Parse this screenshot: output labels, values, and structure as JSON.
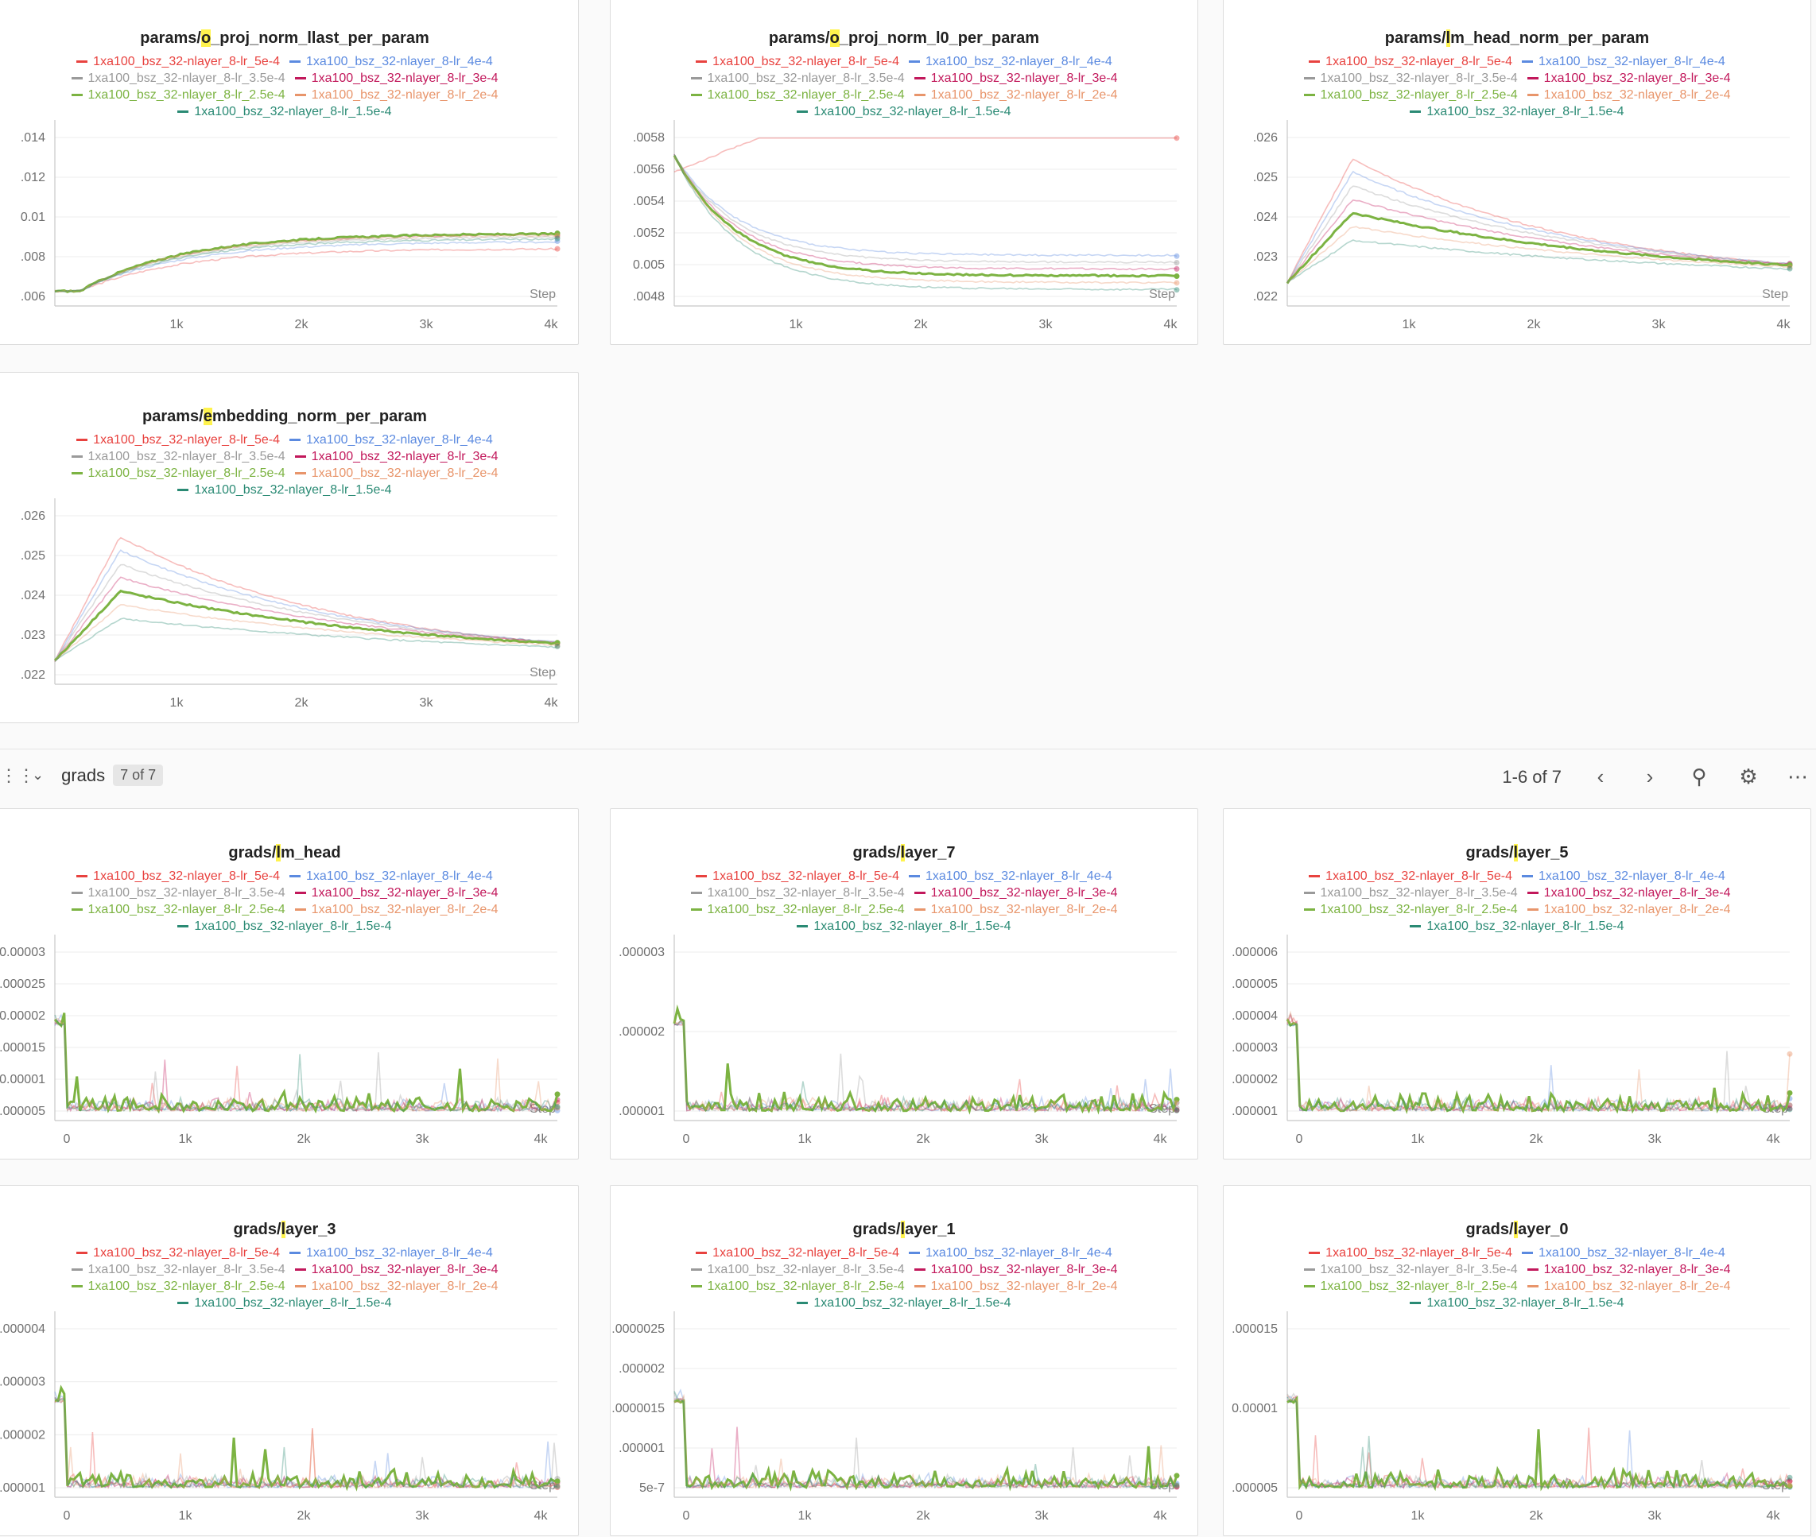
{
  "legend": {
    "runs": [
      {
        "name": "1xa100_bsz_32-nlayer_8-lr_5e-4",
        "color": "#e8423f"
      },
      {
        "name": "1xa100_bsz_32-nlayer_8-lr_4e-4",
        "color": "#5b8ae0"
      },
      {
        "name": "1xa100_bsz_32-nlayer_8-lr_3.5e-4",
        "color": "#9a9a9a"
      },
      {
        "name": "1xa100_bsz_32-nlayer_8-lr_3e-4",
        "color": "#c2185b"
      },
      {
        "name": "1xa100_bsz_32-nlayer_8-lr_2.5e-4",
        "color": "#7cb342"
      },
      {
        "name": "1xa100_bsz_32-nlayer_8-lr_2e-4",
        "color": "#e8956b"
      },
      {
        "name": "1xa100_bsz_32-nlayer_8-lr_1.5e-4",
        "color": "#2a8a74"
      }
    ]
  },
  "step_label": "Step",
  "params_panels": [
    {
      "prefix": "params/",
      "hl": "o",
      "rest": "_proj_norm_llast_per_param",
      "yticks": [
        ".006",
        ".008",
        "0.01",
        ".012",
        ".014"
      ],
      "xticks": [
        "1k",
        "2k",
        "3k",
        "4k"
      ]
    },
    {
      "prefix": "params/",
      "hl": "o",
      "rest": "_proj_norm_l0_per_param",
      "yticks": ".0048|0.005|.0052|.0054|.0056|.0058",
      "xticks": [
        "1k",
        "2k",
        "3k",
        "4k"
      ]
    },
    {
      "prefix": "params/",
      "hl": "l",
      "rest": "m_head_norm_per_param",
      "yticks": [
        ".022",
        ".023",
        ".024",
        ".025",
        ".026"
      ],
      "xticks": [
        "1k",
        "2k",
        "3k",
        "4k"
      ]
    },
    {
      "prefix": "params/",
      "hl": "e",
      "rest": "mbedding_norm_per_param",
      "yticks": [
        ".022",
        ".023",
        ".024",
        ".025",
        ".026"
      ],
      "xticks": [
        "1k",
        "2k",
        "3k",
        "4k"
      ]
    }
  ],
  "section": {
    "title": "grads",
    "badge": "7 of 7",
    "pager": "1-6 of 7"
  },
  "grads_panels": [
    {
      "prefix": "grads/",
      "hl": "l",
      "rest": "m_head",
      "yticks": [
        "0.000005",
        "0.00001",
        "0.000015",
        "0.00002",
        "0.000025",
        "0.00003"
      ],
      "xticks": [
        "0",
        "1k",
        "2k",
        "3k",
        "4k"
      ]
    },
    {
      "prefix": "grads/",
      "hl": "l",
      "rest": "ayer_7",
      "yticks": [
        ".000001",
        ".000002",
        ".000003"
      ],
      "xticks": [
        "0",
        "1k",
        "2k",
        "3k",
        "4k"
      ]
    },
    {
      "prefix": "grads/",
      "hl": "l",
      "rest": "ayer_5",
      "yticks": [
        ".000001",
        ".000002",
        ".000003",
        ".000004",
        ".000005",
        ".000006"
      ],
      "xticks": [
        "0",
        "1k",
        "2k",
        "3k",
        "4k"
      ]
    },
    {
      "prefix": "grads/",
      "hl": "l",
      "rest": "ayer_3",
      "yticks": [
        ".000001",
        ".000002",
        ".000003",
        ".000004"
      ],
      "xticks": [
        "0",
        "1k",
        "2k",
        "3k",
        "4k"
      ]
    },
    {
      "prefix": "grads/",
      "hl": "l",
      "rest": "ayer_1",
      "yticks": [
        "5e-7",
        ".000001",
        ".0000015",
        ".000002",
        ".0000025"
      ],
      "xticks": [
        "0",
        "1k",
        "2k",
        "3k",
        "4k"
      ]
    },
    {
      "prefix": "grads/",
      "hl": "l",
      "rest": "ayer_0",
      "yticks": [
        ".000005",
        "0.00001",
        ".000015"
      ],
      "xticks": [
        "0",
        "1k",
        "2k",
        "3k",
        "4k"
      ]
    }
  ]
}
